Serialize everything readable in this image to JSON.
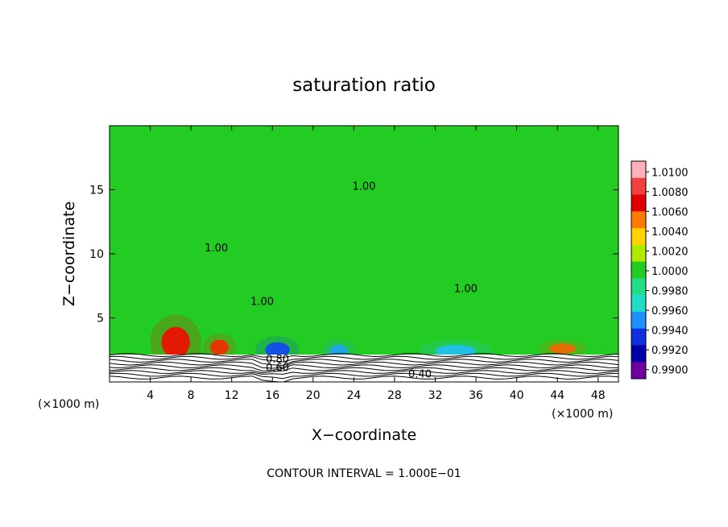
{
  "chart_data": {
    "type": "heatmap",
    "title": "saturation ratio",
    "xlabel": "X−coordinate",
    "ylabel": "Z−coordinate",
    "x_unit_left": "(×1000 m)",
    "x_unit_right": "(×1000 m)",
    "xlim": [
      0,
      50
    ],
    "ylim": [
      0,
      20
    ],
    "x_ticks": [
      4,
      8,
      12,
      16,
      20,
      24,
      28,
      32,
      36,
      40,
      44,
      48
    ],
    "y_ticks": [
      5,
      10,
      15
    ],
    "footer": "CONTOUR INTERVAL = 1.000E−01",
    "contour_interval": 0.1,
    "contour_labels": [
      {
        "text": "1.00",
        "x": 10.5,
        "y": 10.2
      },
      {
        "text": "1.00",
        "x": 25.0,
        "y": 15.0
      },
      {
        "text": "1.00",
        "x": 15.0,
        "y": 6.0
      },
      {
        "text": "1.00",
        "x": 35.0,
        "y": 7.0
      },
      {
        "text": "0.80",
        "x": 16.5,
        "y": 1.5
      },
      {
        "text": "0.60",
        "x": 16.5,
        "y": 0.85
      },
      {
        "text": "0.40",
        "x": 30.5,
        "y": 0.35
      }
    ],
    "colorbar": {
      "labels": [
        "1.0100",
        "1.0080",
        "1.0060",
        "1.0040",
        "1.0020",
        "1.0000",
        "0.9980",
        "0.9960",
        "0.9940",
        "0.9920",
        "0.9900"
      ],
      "colors": [
        "#ffb0b8",
        "#f04040",
        "#e00000",
        "#ff7a00",
        "#ffd200",
        "#b0ea00",
        "#22cc22",
        "#22dd88",
        "#20ddc8",
        "#1e90ff",
        "#1030e0",
        "#0000a8",
        "#7000a0"
      ]
    },
    "hotspots": [
      {
        "x": 6.5,
        "y": 3.1,
        "rx": 1.4,
        "ry": 1.2,
        "color": "#ff0000"
      },
      {
        "x": 10.8,
        "y": 2.7,
        "rx": 0.9,
        "ry": 0.6,
        "color": "#ff2000"
      },
      {
        "x": 44.5,
        "y": 2.6,
        "rx": 1.3,
        "ry": 0.4,
        "color": "#ff6000"
      },
      {
        "x": 16.5,
        "y": 2.5,
        "rx": 1.2,
        "ry": 0.6,
        "color": "#1040ff"
      },
      {
        "x": 22.5,
        "y": 2.4,
        "rx": 0.9,
        "ry": 0.5,
        "color": "#20a0ff"
      },
      {
        "x": 34.0,
        "y": 2.4,
        "rx": 2.0,
        "ry": 0.5,
        "color": "#20c0ff"
      }
    ]
  }
}
